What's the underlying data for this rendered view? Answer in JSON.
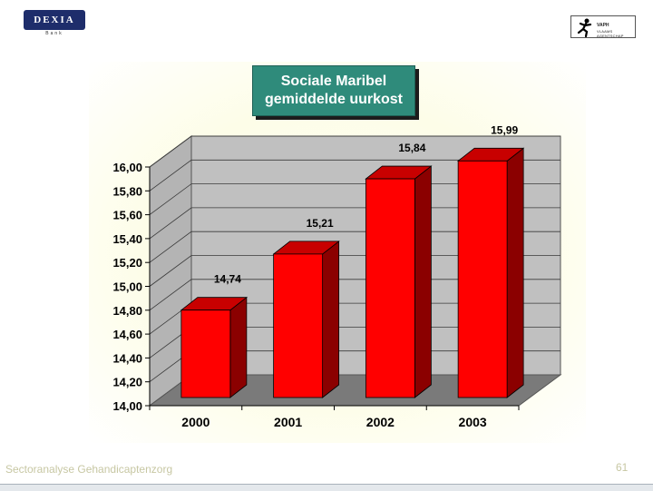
{
  "header": {
    "left_logo_text": "DEXIA",
    "left_logo_sub": "Bank",
    "right_logo_line1": "VAPH",
    "right_logo_line2": "VLAAMS AGENTSCHAP"
  },
  "footer": {
    "left_text": "Sectoranalyse Gehandicaptenzorg",
    "page_number": "61"
  },
  "colors": {
    "bar_front": "#ff0000",
    "bar_side": "#8b0000",
    "bar_top": "#c80000",
    "wall": "#c0c0c0",
    "floor": "#7a7a7a",
    "title_bg": "#2f8b7b"
  },
  "chart_data": {
    "type": "bar",
    "title_lines": [
      "Sociale Maribel",
      "gemiddelde uurkost"
    ],
    "categories": [
      "2000",
      "2001",
      "2002",
      "2003"
    ],
    "values": [
      14.74,
      15.21,
      15.84,
      15.99
    ],
    "value_labels": [
      "14,74",
      "15,21",
      "15,84",
      "15,99"
    ],
    "ylim": [
      14.0,
      16.0
    ],
    "ytick_labels": [
      "14,00",
      "14,20",
      "14,40",
      "14,60",
      "14,80",
      "15,00",
      "15,20",
      "15,40",
      "15,60",
      "15,80",
      "16,00"
    ],
    "xlabel": "",
    "ylabel": "",
    "grid": true,
    "legend": "none",
    "style": "3d"
  }
}
